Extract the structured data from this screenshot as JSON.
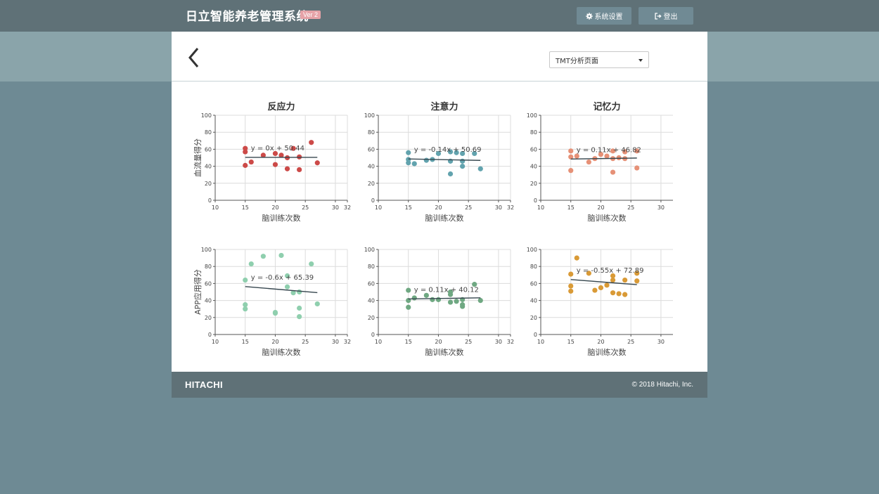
{
  "app": {
    "title": "日立智能养老管理系统",
    "version": "Ver 2"
  },
  "topbar": {
    "settings_label": "系统设置",
    "logout_label": "登出",
    "settings_icon": "gear-icon",
    "logout_icon": "sign-out-icon"
  },
  "header": {
    "back_icon": "chevron-left-icon",
    "select_value": "TMT分析页面"
  },
  "footer": {
    "logo": "HITACHI",
    "copyright": "© 2018 Hitachi, Inc."
  },
  "colors": {
    "topbar": "#5f7177",
    "band": "#8aa4aa",
    "page_bg": "#6e8a94",
    "reg_line": "#37474f"
  },
  "chart_data": [
    {
      "type": "scatter",
      "title": "反应力",
      "xlabel": "脑训练次数",
      "ylabel": "血流量得分",
      "equation": "y = 0x + 50.44",
      "color": "#cc4a48",
      "xlim": [
        10,
        32
      ],
      "xticks": [
        10,
        15,
        20,
        25,
        30,
        32
      ],
      "ylim": [
        0,
        100
      ],
      "yticks": [
        0,
        20,
        40,
        60,
        80,
        100
      ],
      "reg": [
        0,
        50.44
      ],
      "points": [
        [
          15,
          61
        ],
        [
          15,
          57
        ],
        [
          15,
          41
        ],
        [
          16,
          45
        ],
        [
          18,
          53
        ],
        [
          20,
          55
        ],
        [
          20,
          42
        ],
        [
          21,
          53
        ],
        [
          22,
          50
        ],
        [
          22,
          37
        ],
        [
          23,
          61
        ],
        [
          24,
          51
        ],
        [
          24,
          36
        ],
        [
          26,
          68
        ],
        [
          27,
          44
        ]
      ]
    },
    {
      "type": "scatter",
      "title": "注意力",
      "xlabel": "脑训练次数",
      "ylabel": "",
      "equation": "y = -0.14x + 50.69",
      "color": "#62a3ae",
      "xlim": [
        10,
        32
      ],
      "xticks": [
        10,
        15,
        20,
        25,
        30,
        32
      ],
      "ylim": [
        0,
        100
      ],
      "yticks": [
        0,
        20,
        40,
        60,
        80,
        100
      ],
      "reg": [
        -0.14,
        50.69
      ],
      "points": [
        [
          15,
          56
        ],
        [
          15,
          48
        ],
        [
          15,
          44
        ],
        [
          16,
          43
        ],
        [
          18,
          47
        ],
        [
          19,
          48
        ],
        [
          20,
          55
        ],
        [
          22,
          57
        ],
        [
          22,
          46
        ],
        [
          22,
          31
        ],
        [
          23,
          56
        ],
        [
          24,
          55
        ],
        [
          24,
          46
        ],
        [
          24,
          40
        ],
        [
          26,
          55
        ],
        [
          27,
          37
        ]
      ]
    },
    {
      "type": "scatter",
      "title": "记忆力",
      "xlabel": "脑训练次数",
      "ylabel": "",
      "equation": "y = 0.11x + 46.82",
      "color": "#e69177",
      "xlim": [
        10,
        32
      ],
      "xticks": [
        10,
        15,
        20,
        25,
        30
      ],
      "ylim": [
        0,
        100
      ],
      "yticks": [
        0,
        20,
        40,
        60,
        80,
        100
      ],
      "reg": [
        0.11,
        46.82
      ],
      "points": [
        [
          15,
          58
        ],
        [
          15,
          51
        ],
        [
          15,
          35
        ],
        [
          16,
          52
        ],
        [
          18,
          45
        ],
        [
          19,
          49
        ],
        [
          20,
          54
        ],
        [
          21,
          52
        ],
        [
          22,
          58
        ],
        [
          22,
          49
        ],
        [
          22,
          33
        ],
        [
          23,
          50
        ],
        [
          24,
          57
        ],
        [
          24,
          49
        ],
        [
          26,
          58
        ],
        [
          26,
          38
        ]
      ]
    },
    {
      "type": "scatter",
      "title": "",
      "xlabel": "脑训练次数",
      "ylabel": "APP应用得分",
      "equation": "y = -0.6x + 65.39",
      "color": "#8fcfae",
      "xlim": [
        10,
        32
      ],
      "xticks": [
        10,
        15,
        20,
        25,
        30,
        32
      ],
      "ylim": [
        0,
        100
      ],
      "yticks": [
        0,
        20,
        40,
        60,
        80,
        100
      ],
      "reg": [
        -0.6,
        65.39
      ],
      "points": [
        [
          15,
          64
        ],
        [
          15,
          35
        ],
        [
          15,
          30
        ],
        [
          16,
          83
        ],
        [
          18,
          92
        ],
        [
          20,
          26
        ],
        [
          20,
          25
        ],
        [
          21,
          93
        ],
        [
          22,
          69
        ],
        [
          22,
          56
        ],
        [
          23,
          49
        ],
        [
          24,
          50
        ],
        [
          24,
          31
        ],
        [
          24,
          21
        ],
        [
          26,
          83
        ],
        [
          27,
          36
        ]
      ]
    },
    {
      "type": "scatter",
      "title": "",
      "xlabel": "脑训练次数",
      "ylabel": "",
      "equation": "y = 0.11x + 40.12",
      "color": "#6fa882",
      "xlim": [
        10,
        32
      ],
      "xticks": [
        10,
        15,
        20,
        25,
        30,
        32
      ],
      "ylim": [
        0,
        100
      ],
      "yticks": [
        0,
        20,
        40,
        60,
        80,
        100
      ],
      "reg": [
        0.11,
        40.12
      ],
      "points": [
        [
          15,
          52
        ],
        [
          15,
          40
        ],
        [
          15,
          32
        ],
        [
          16,
          43
        ],
        [
          18,
          46
        ],
        [
          19,
          41
        ],
        [
          20,
          41
        ],
        [
          22,
          50
        ],
        [
          22,
          47
        ],
        [
          22,
          38
        ],
        [
          23,
          39
        ],
        [
          24,
          41
        ],
        [
          24,
          35
        ],
        [
          24,
          33
        ],
        [
          26,
          59
        ],
        [
          27,
          40
        ]
      ]
    },
    {
      "type": "scatter",
      "title": "",
      "xlabel": "脑训练次数",
      "ylabel": "",
      "equation": "y = -0.55x + 72.89",
      "color": "#d99a36",
      "xlim": [
        10,
        32
      ],
      "xticks": [
        10,
        15,
        20,
        25,
        30
      ],
      "ylim": [
        0,
        100
      ],
      "yticks": [
        0,
        20,
        40,
        60,
        80,
        100
      ],
      "reg": [
        -0.55,
        72.89
      ],
      "points": [
        [
          15,
          71
        ],
        [
          15,
          57
        ],
        [
          15,
          51
        ],
        [
          16,
          90
        ],
        [
          18,
          72
        ],
        [
          19,
          52
        ],
        [
          20,
          55
        ],
        [
          21,
          58
        ],
        [
          22,
          69
        ],
        [
          22,
          64
        ],
        [
          22,
          49
        ],
        [
          23,
          48
        ],
        [
          24,
          64
        ],
        [
          24,
          47
        ],
        [
          26,
          72
        ],
        [
          26,
          63
        ]
      ]
    }
  ]
}
